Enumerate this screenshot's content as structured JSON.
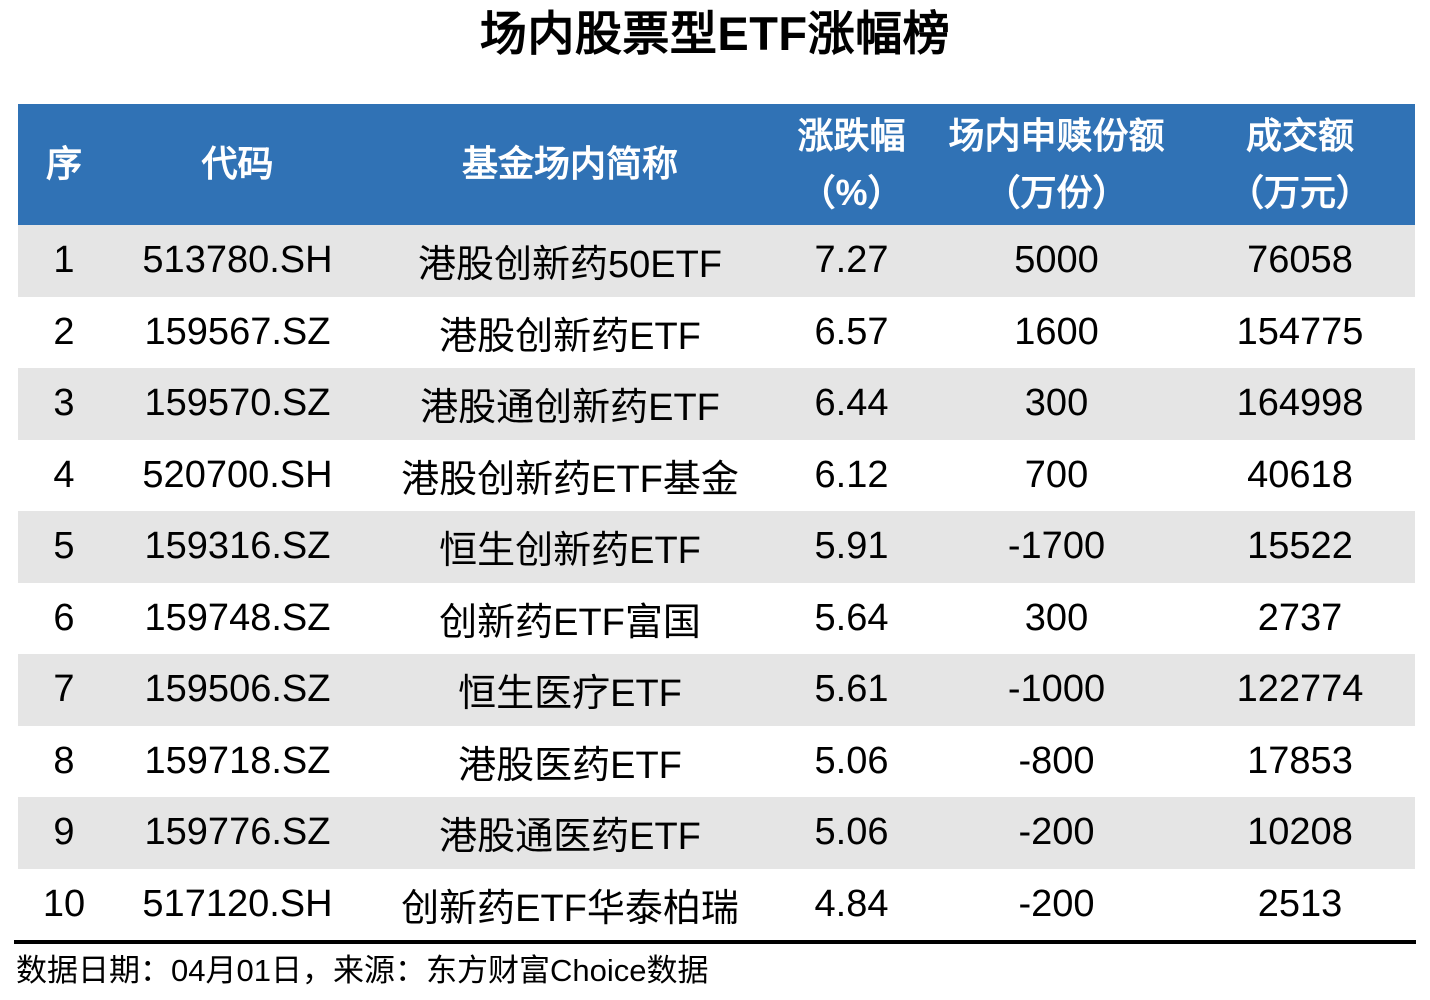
{
  "title": "场内股票型ETF涨幅榜",
  "table": {
    "columns": [
      {
        "key": "rank",
        "label": "序"
      },
      {
        "key": "code",
        "label": "代码"
      },
      {
        "key": "name",
        "label": "基金场内简称"
      },
      {
        "key": "change_pct",
        "label": "涨跌幅\n（%）"
      },
      {
        "key": "shares",
        "label": "场内申赎份额\n（万份）"
      },
      {
        "key": "turnover",
        "label": "成交额\n（万元）"
      }
    ],
    "rows": [
      {
        "rank": "1",
        "code": "513780.SH",
        "name": "港股创新药50ETF",
        "change_pct": "7.27",
        "shares": "5000",
        "turnover": "76058"
      },
      {
        "rank": "2",
        "code": "159567.SZ",
        "name": "港股创新药ETF",
        "change_pct": "6.57",
        "shares": "1600",
        "turnover": "154775"
      },
      {
        "rank": "3",
        "code": "159570.SZ",
        "name": "港股通创新药ETF",
        "change_pct": "6.44",
        "shares": "300",
        "turnover": "164998"
      },
      {
        "rank": "4",
        "code": "520700.SH",
        "name": "港股创新药ETF基金",
        "change_pct": "6.12",
        "shares": "700",
        "turnover": "40618"
      },
      {
        "rank": "5",
        "code": "159316.SZ",
        "name": "恒生创新药ETF",
        "change_pct": "5.91",
        "shares": "-1700",
        "turnover": "15522"
      },
      {
        "rank": "6",
        "code": "159748.SZ",
        "name": "创新药ETF富国",
        "change_pct": "5.64",
        "shares": "300",
        "turnover": "2737"
      },
      {
        "rank": "7",
        "code": "159506.SZ",
        "name": "恒生医疗ETF",
        "change_pct": "5.61",
        "shares": "-1000",
        "turnover": "122774"
      },
      {
        "rank": "8",
        "code": "159718.SZ",
        "name": "港股医药ETF",
        "change_pct": "5.06",
        "shares": "-800",
        "turnover": "17853"
      },
      {
        "rank": "9",
        "code": "159776.SZ",
        "name": "港股通医药ETF",
        "change_pct": "5.06",
        "shares": "-200",
        "turnover": "10208"
      },
      {
        "rank": "10",
        "code": "517120.SH",
        "name": "创新药ETF华泰柏瑞",
        "change_pct": "4.84",
        "shares": "-200",
        "turnover": "2513"
      }
    ]
  },
  "footer": {
    "text": "数据日期：04月01日，来源：东方财富Choice数据"
  },
  "colors": {
    "header_bg": "#3072B5",
    "header_text": "#FFFFFF",
    "stripe_bg": "#E5E5E5",
    "divider": "#000000"
  },
  "chart_data": {
    "type": "table",
    "title": "场内股票型ETF涨幅榜",
    "columns": [
      "序",
      "代码",
      "基金场内简称",
      "涨跌幅（%）",
      "场内申赎份额（万份）",
      "成交额（万元）"
    ],
    "rows": [
      [
        1,
        "513780.SH",
        "港股创新药50ETF",
        7.27,
        5000,
        76058
      ],
      [
        2,
        "159567.SZ",
        "港股创新药ETF",
        6.57,
        1600,
        154775
      ],
      [
        3,
        "159570.SZ",
        "港股通创新药ETF",
        6.44,
        300,
        164998
      ],
      [
        4,
        "520700.SH",
        "港股创新药ETF基金",
        6.12,
        700,
        40618
      ],
      [
        5,
        "159316.SZ",
        "恒生创新药ETF",
        5.91,
        -1700,
        15522
      ],
      [
        6,
        "159748.SZ",
        "创新药ETF富国",
        5.64,
        300,
        2737
      ],
      [
        7,
        "159506.SZ",
        "恒生医疗ETF",
        5.61,
        -1000,
        122774
      ],
      [
        8,
        "159718.SZ",
        "港股医药ETF",
        5.06,
        -800,
        17853
      ],
      [
        9,
        "159776.SZ",
        "港股通医药ETF",
        5.06,
        -200,
        10208
      ],
      [
        10,
        "517120.SH",
        "创新药ETF华泰柏瑞",
        4.84,
        -200,
        2513
      ]
    ],
    "note": "数据日期：04月01日，来源：东方财富Choice数据",
    "layout_hints": {
      "striped_rows": "odd",
      "header_style": "blue-filled",
      "alignment": "center"
    }
  }
}
